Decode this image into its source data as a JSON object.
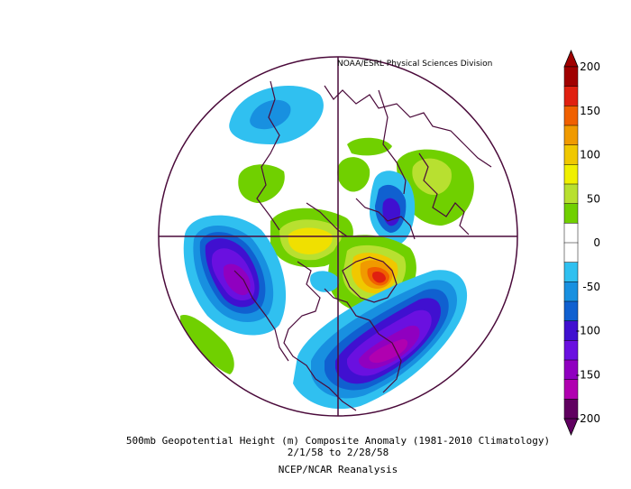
{
  "credit": "NOAA/ESRL Physical Sciences Division",
  "caption": {
    "line1": "500mb Geopotential Height (m) Composite Anomaly (1981-2010 Climatology)",
    "line2": "2/1/58  to 2/28/58",
    "line3": "NCEP/NCAR Reanalysis"
  },
  "colorbar": {
    "ticks": [
      "200",
      "150",
      "100",
      "50",
      "0",
      "-50",
      "-100",
      "-150",
      "-200"
    ],
    "colors": [
      "#a00000",
      "#e02010",
      "#f06000",
      "#f09a00",
      "#f0c800",
      "#f0f000",
      "#b8e030",
      "#70d000",
      "#ffffff",
      "#ffffff",
      "#30c0f0",
      "#1890e0",
      "#1060d0",
      "#4010d0",
      "#6a10e0",
      "#9000c0",
      "#b000b0",
      "#600060"
    ]
  }
}
